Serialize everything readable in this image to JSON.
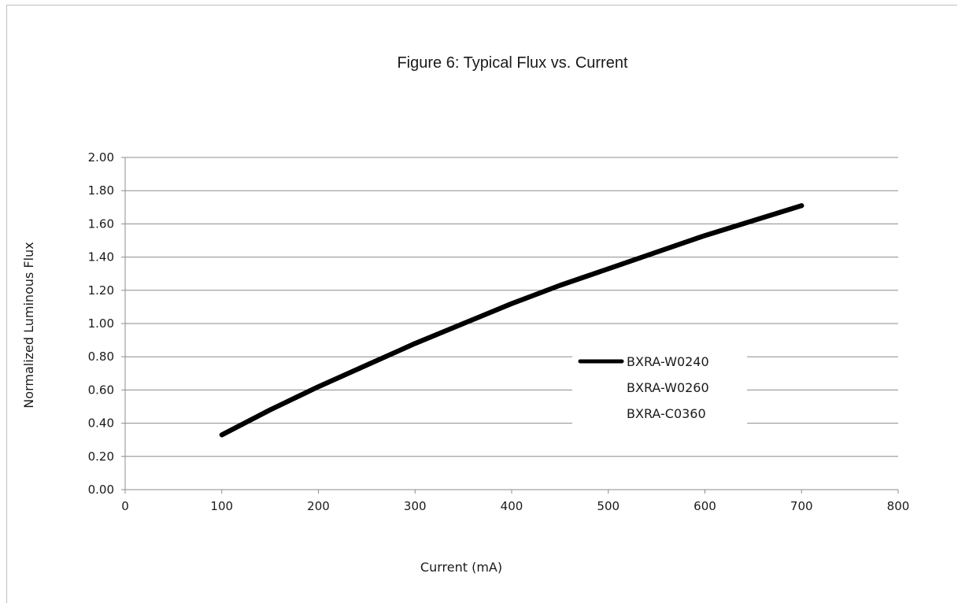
{
  "chart_data": {
    "type": "line",
    "title": "Figure 6:  Typical Flux vs. Current",
    "xlabel": "Current (mA)",
    "ylabel": "Normalized Luminous Flux",
    "xlim": [
      0,
      800
    ],
    "ylim": [
      0,
      2.0
    ],
    "xticks": [
      "0",
      "100",
      "200",
      "300",
      "400",
      "500",
      "600",
      "700",
      "800"
    ],
    "yticks": [
      "0.00",
      "0.20",
      "0.40",
      "0.60",
      "0.80",
      "1.00",
      "1.20",
      "1.40",
      "1.60",
      "1.80",
      "2.00"
    ],
    "grid": "horizontal",
    "legend_position": "center-right",
    "series": [
      {
        "name": "BXRA-W0240",
        "color": "#000000",
        "x": [
          100,
          150,
          200,
          250,
          300,
          350,
          400,
          450,
          500,
          550,
          600,
          650,
          700
        ],
        "y": [
          0.33,
          0.48,
          0.62,
          0.75,
          0.88,
          1.0,
          1.12,
          1.23,
          1.33,
          1.43,
          1.53,
          1.62,
          1.71
        ]
      },
      {
        "name": "BXRA-W0260",
        "color": "#000000",
        "x": [
          100,
          150,
          200,
          250,
          300,
          350,
          400,
          450,
          500,
          550,
          600,
          650,
          700
        ],
        "y": [
          0.33,
          0.48,
          0.62,
          0.75,
          0.88,
          1.0,
          1.12,
          1.23,
          1.33,
          1.43,
          1.53,
          1.62,
          1.71
        ]
      },
      {
        "name": "BXRA-C0360",
        "color": "#000000",
        "x": [
          100,
          150,
          200,
          250,
          300,
          350,
          400,
          450,
          500,
          550,
          600,
          650,
          700
        ],
        "y": [
          0.33,
          0.48,
          0.62,
          0.75,
          0.88,
          1.0,
          1.12,
          1.23,
          1.33,
          1.43,
          1.53,
          1.62,
          1.71
        ]
      }
    ]
  }
}
